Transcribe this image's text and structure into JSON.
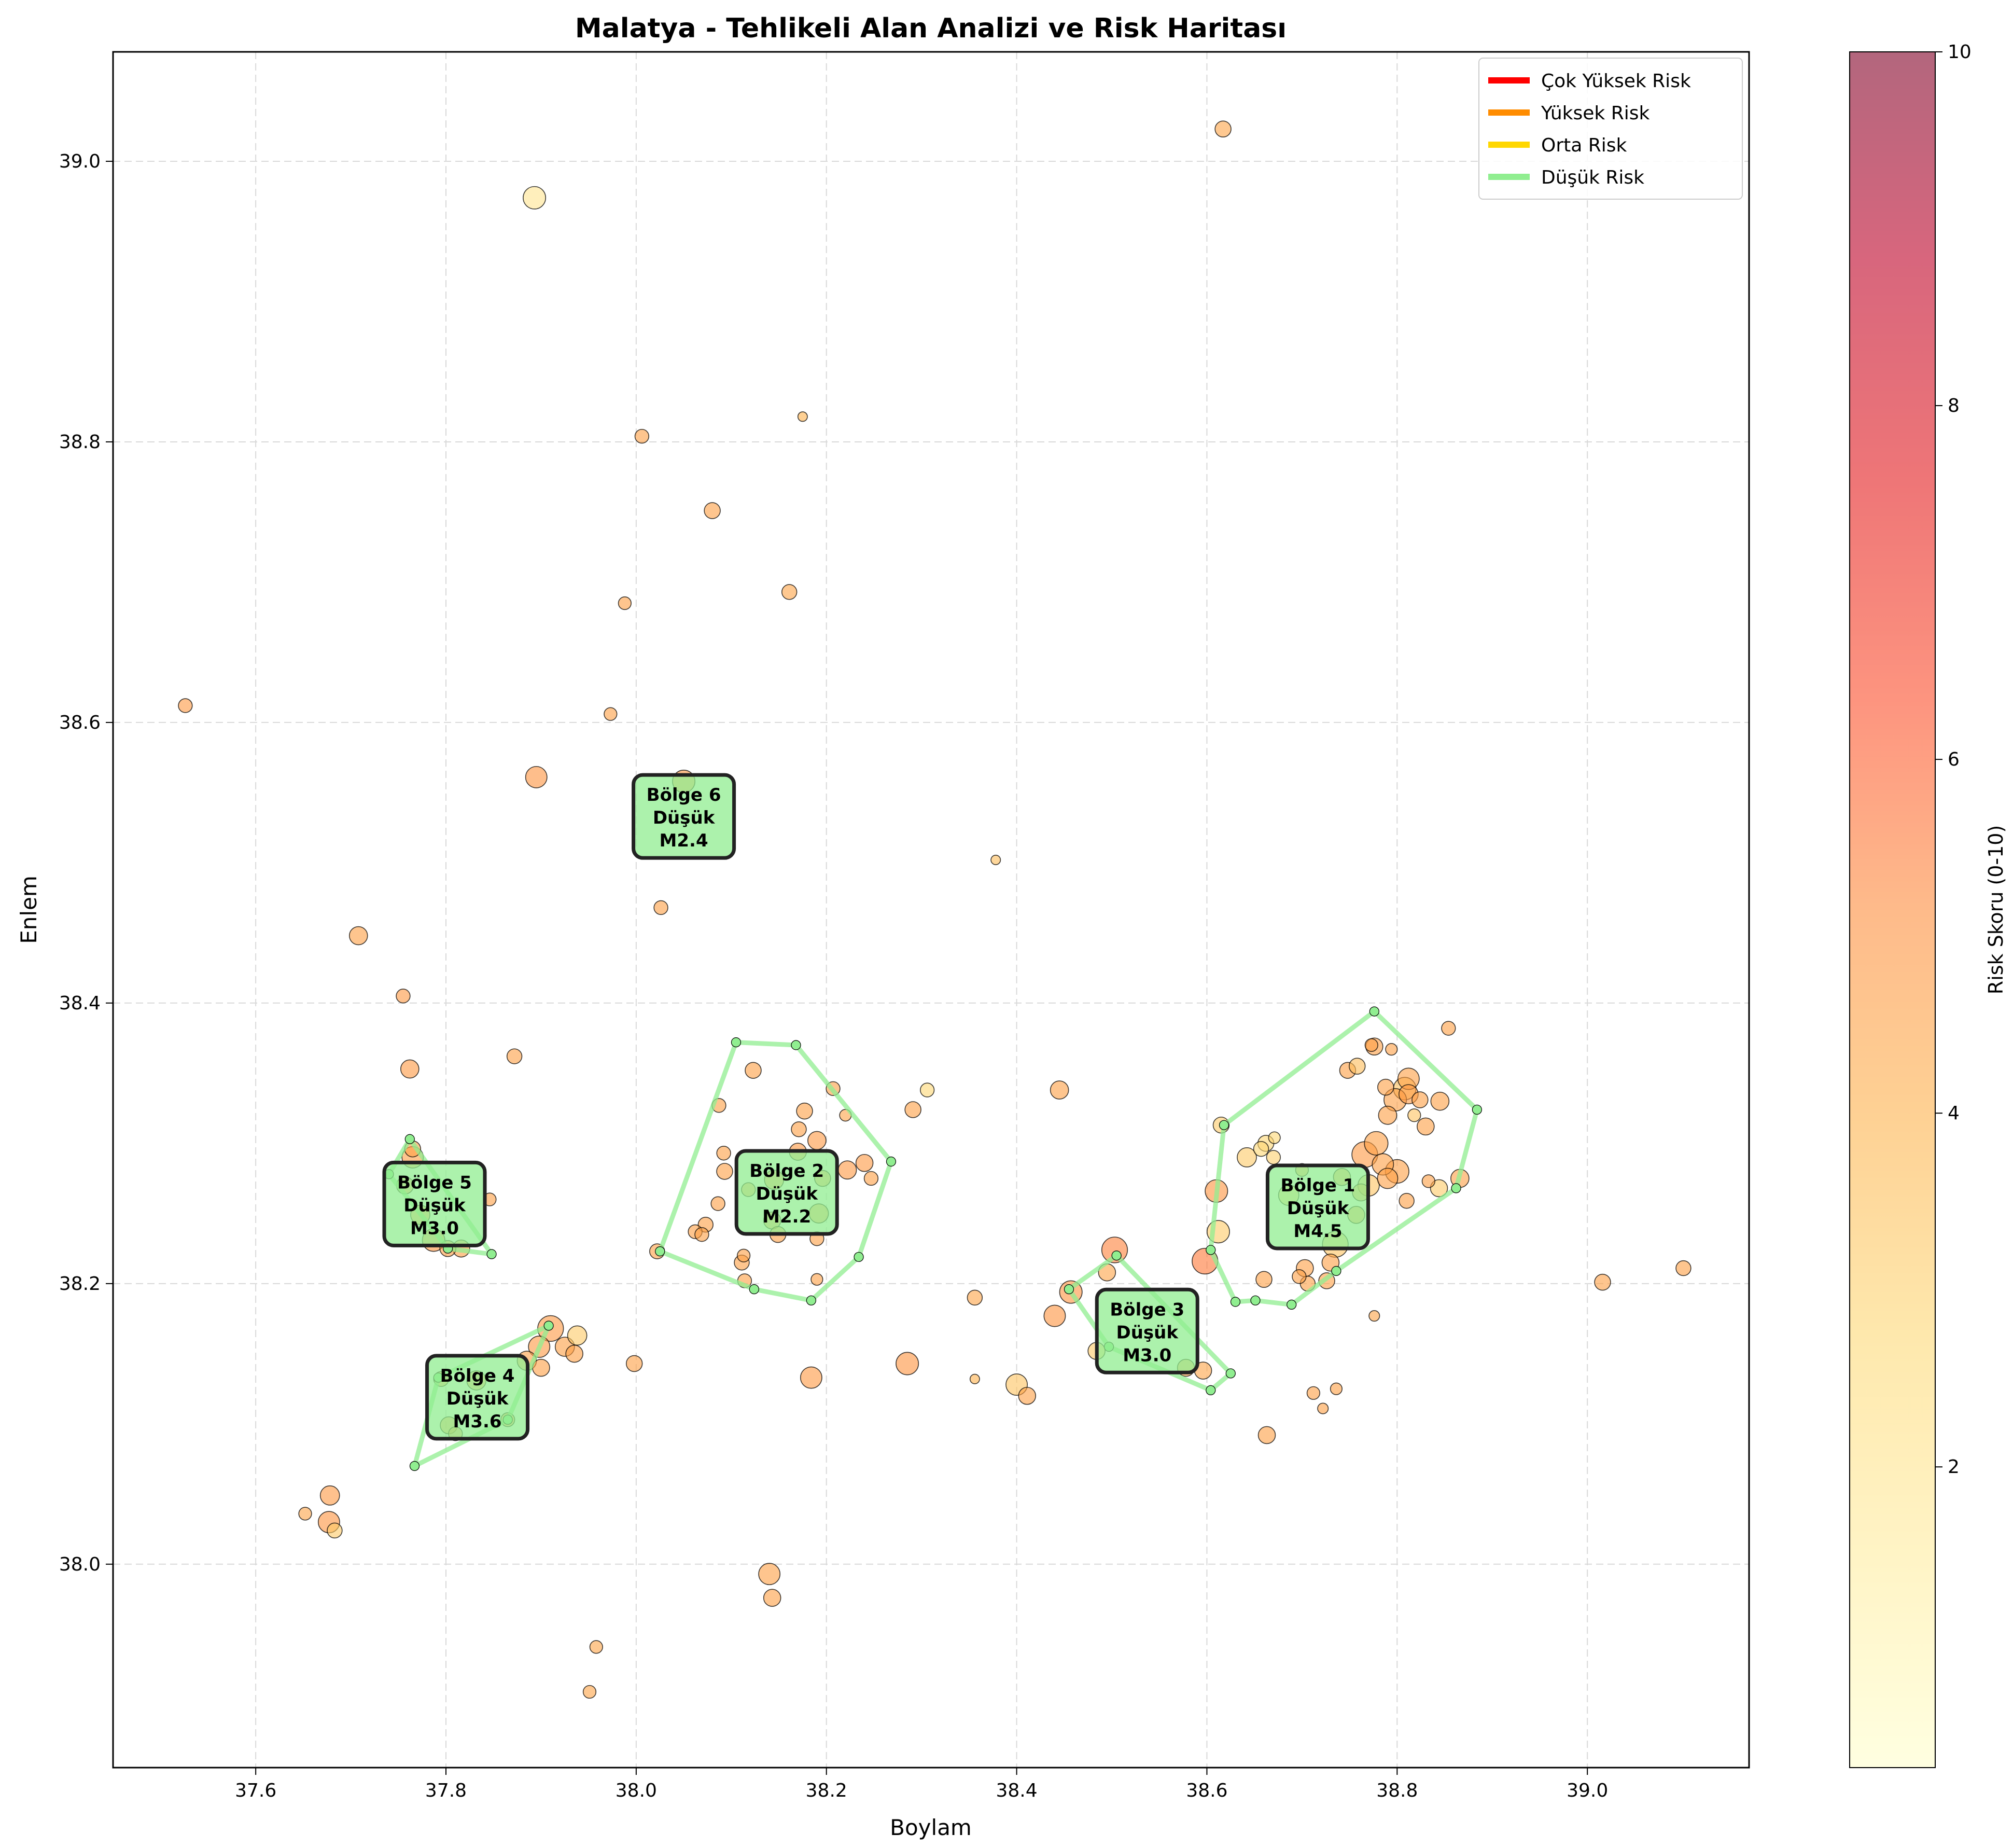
{
  "chart_data": {
    "type": "scatter",
    "title": "Malatya - Tehlikeli Alan Analizi ve Risk Haritası",
    "xlabel": "Boylam",
    "ylabel": "Enlem",
    "xlim": [
      37.45,
      39.17
    ],
    "ylim": [
      37.855,
      39.078
    ],
    "xticks": [
      "37.6",
      "37.8",
      "38.0",
      "38.2",
      "38.4",
      "38.6",
      "38.8",
      "39.0"
    ],
    "yticks": [
      "38.0",
      "38.2",
      "38.4",
      "38.6",
      "38.8",
      "39.0"
    ],
    "grid": true,
    "colorbar": {
      "label": "Risk Skoru (0-10)",
      "range": [
        0.3,
        10
      ],
      "ticks": [
        "2",
        "4",
        "6",
        "8",
        "10"
      ],
      "colormap": "YlOrRd"
    },
    "legend": {
      "placement": "top-right",
      "items": [
        {
          "label": "Çok Yüksek Risk",
          "color": "#ff0000"
        },
        {
          "label": "Yüksek Risk",
          "color": "#ff8c00"
        },
        {
          "label": "Orta Risk",
          "color": "#ffd700"
        },
        {
          "label": "Düşük Risk",
          "color": "#90ee90"
        }
      ]
    },
    "regions": [
      {
        "name": "Bölge 1",
        "risk": "Düşük",
        "mag": "M4.5",
        "hull": [
          [
            38.776,
            38.394
          ],
          [
            38.884,
            38.324
          ],
          [
            38.862,
            38.268
          ],
          [
            38.736,
            38.209
          ],
          [
            38.689,
            38.185
          ],
          [
            38.651,
            38.188
          ],
          [
            38.63,
            38.187
          ],
          [
            38.604,
            38.224
          ],
          [
            38.618,
            38.313
          ]
        ]
      },
      {
        "name": "Bölge 2",
        "risk": "Düşük",
        "mag": "M2.2",
        "hull": [
          [
            38.105,
            38.372
          ],
          [
            38.168,
            38.37
          ],
          [
            38.268,
            38.287
          ],
          [
            38.234,
            38.219
          ],
          [
            38.184,
            38.188
          ],
          [
            38.124,
            38.196
          ],
          [
            38.025,
            38.223
          ]
        ]
      },
      {
        "name": "Bölge 3",
        "risk": "Düşük",
        "mag": "M3.0",
        "hull": [
          [
            38.505,
            38.22
          ],
          [
            38.625,
            38.136
          ],
          [
            38.604,
            38.124
          ],
          [
            38.497,
            38.155
          ],
          [
            38.455,
            38.196
          ]
        ]
      },
      {
        "name": "Bölge 4",
        "risk": "Düşük",
        "mag": "M3.6",
        "hull": [
          [
            37.908,
            38.17
          ],
          [
            37.865,
            38.103
          ],
          [
            37.767,
            38.07
          ],
          [
            37.792,
            38.133
          ]
        ]
      },
      {
        "name": "Bölge 5",
        "risk": "Düşük",
        "mag": "M3.0",
        "hull": [
          [
            37.762,
            38.303
          ],
          [
            37.848,
            38.221
          ],
          [
            37.802,
            38.225
          ],
          [
            37.74,
            38.278
          ]
        ]
      },
      {
        "name": "Bölge 6",
        "risk": "Düşük",
        "mag": "M2.4",
        "hull": [],
        "label_at": [
          38.05,
          38.533
        ]
      }
    ],
    "points": [
      [
        38.617,
        39.023,
        2.2,
        4.4
      ],
      [
        37.893,
        38.974,
        3.4,
        2.0
      ],
      [
        38.175,
        38.818,
        1.0,
        4.0
      ],
      [
        38.006,
        38.804,
        1.8,
        4.6
      ],
      [
        38.08,
        38.751,
        2.2,
        4.6
      ],
      [
        37.988,
        38.685,
        1.6,
        4.6
      ],
      [
        38.161,
        38.693,
        2.0,
        4.4
      ],
      [
        37.526,
        38.612,
        1.8,
        4.8
      ],
      [
        37.973,
        38.606,
        1.6,
        4.6
      ],
      [
        37.895,
        38.561,
        3.2,
        5.0
      ],
      [
        38.05,
        38.558,
        3.4,
        5.0
      ],
      [
        38.378,
        38.502,
        1.0,
        3.6
      ],
      [
        38.026,
        38.468,
        1.8,
        4.6
      ],
      [
        37.708,
        38.448,
        2.6,
        4.6
      ],
      [
        37.755,
        38.405,
        1.8,
        4.8
      ],
      [
        37.762,
        38.353,
        2.6,
        4.8
      ],
      [
        37.872,
        38.362,
        2.0,
        4.6
      ],
      [
        38.123,
        38.352,
        2.2,
        4.6
      ],
      [
        38.445,
        38.338,
        2.6,
        4.6
      ],
      [
        38.291,
        38.324,
        2.2,
        4.6
      ],
      [
        38.306,
        38.338,
        1.8,
        2.8
      ],
      [
        38.207,
        38.339,
        1.8,
        4.6
      ],
      [
        38.087,
        38.327,
        1.8,
        4.6
      ],
      [
        38.177,
        38.323,
        2.2,
        4.6
      ],
      [
        38.22,
        38.32,
        1.4,
        4.4
      ],
      [
        38.171,
        38.31,
        2.0,
        4.6
      ],
      [
        38.19,
        38.302,
        2.6,
        4.8
      ],
      [
        38.092,
        38.293,
        1.8,
        4.6
      ],
      [
        38.24,
        38.286,
        2.4,
        4.8
      ],
      [
        38.222,
        38.281,
        2.6,
        4.8
      ],
      [
        38.247,
        38.275,
        1.8,
        4.6
      ],
      [
        38.093,
        38.28,
        2.2,
        4.6
      ],
      [
        38.118,
        38.267,
        1.8,
        4.6
      ],
      [
        38.086,
        38.257,
        1.8,
        4.6
      ],
      [
        38.143,
        38.245,
        2.4,
        4.6
      ],
      [
        38.192,
        38.25,
        2.8,
        4.6
      ],
      [
        38.073,
        38.242,
        2.0,
        4.6
      ],
      [
        38.062,
        38.237,
        1.8,
        4.6
      ],
      [
        38.069,
        38.235,
        1.8,
        4.6
      ],
      [
        38.149,
        38.235,
        2.2,
        4.6
      ],
      [
        38.19,
        38.232,
        1.8,
        4.6
      ],
      [
        38.113,
        38.22,
        1.6,
        4.6
      ],
      [
        38.111,
        38.215,
        2.0,
        4.6
      ],
      [
        38.114,
        38.202,
        1.8,
        4.6
      ],
      [
        38.19,
        38.203,
        1.4,
        4.6
      ],
      [
        38.145,
        38.274,
        2.8,
        4.8
      ],
      [
        38.17,
        38.294,
        2.4,
        4.8
      ],
      [
        38.196,
        38.275,
        2.2,
        4.6
      ],
      [
        38.184,
        38.133,
        3.2,
        4.8
      ],
      [
        38.285,
        38.143,
        3.4,
        5.0
      ],
      [
        38.356,
        38.19,
        2.0,
        4.4
      ],
      [
        38.356,
        38.132,
        1.0,
        4.0
      ],
      [
        38.4,
        38.128,
        3.2,
        3.4
      ],
      [
        38.411,
        38.12,
        2.4,
        4.6
      ],
      [
        38.44,
        38.177,
        3.2,
        5.0
      ],
      [
        38.457,
        38.194,
        3.4,
        5.0
      ],
      [
        38.495,
        38.208,
        2.4,
        4.4
      ],
      [
        38.503,
        38.224,
        4.0,
        5.4
      ],
      [
        38.484,
        38.152,
        2.4,
        3.2
      ],
      [
        38.578,
        38.14,
        2.4,
        4.4
      ],
      [
        38.596,
        38.138,
        2.4,
        4.4
      ],
      [
        38.598,
        38.216,
        4.0,
        5.6
      ],
      [
        38.61,
        38.266,
        3.4,
        5.0
      ],
      [
        38.612,
        38.237,
        3.4,
        3.2
      ],
      [
        38.66,
        38.203,
        2.2,
        4.6
      ],
      [
        38.663,
        38.092,
        2.4,
        4.6
      ],
      [
        38.642,
        38.29,
        2.8,
        3.2
      ],
      [
        38.657,
        38.296,
        2.0,
        2.8
      ],
      [
        38.662,
        38.3,
        2.2,
        2.8
      ],
      [
        38.671,
        38.304,
        1.4,
        2.8
      ],
      [
        38.67,
        38.29,
        1.8,
        3.0
      ],
      [
        38.686,
        38.263,
        3.0,
        3.0
      ],
      [
        38.703,
        38.211,
        2.4,
        4.6
      ],
      [
        38.697,
        38.205,
        1.8,
        4.6
      ],
      [
        38.706,
        38.2,
        2.0,
        4.6
      ],
      [
        38.726,
        38.202,
        2.2,
        4.6
      ],
      [
        38.735,
        38.228,
        4.0,
        3.4
      ],
      [
        38.73,
        38.215,
        2.4,
        4.6
      ],
      [
        38.712,
        38.122,
        1.6,
        4.6
      ],
      [
        38.722,
        38.111,
        1.2,
        4.6
      ],
      [
        38.736,
        38.125,
        1.4,
        4.6
      ],
      [
        38.776,
        38.177,
        1.2,
        4.4
      ],
      [
        38.757,
        38.249,
        2.4,
        4.6
      ],
      [
        38.748,
        38.352,
        2.2,
        4.6
      ],
      [
        38.758,
        38.355,
        2.2,
        3.6
      ],
      [
        38.773,
        38.37,
        1.6,
        4.6
      ],
      [
        38.776,
        38.369,
        2.4,
        4.6
      ],
      [
        38.788,
        38.34,
        2.2,
        4.6
      ],
      [
        38.794,
        38.367,
        1.4,
        4.6
      ],
      [
        38.808,
        38.339,
        3.4,
        3.4
      ],
      [
        38.812,
        38.346,
        3.2,
        4.6
      ],
      [
        38.798,
        38.331,
        3.4,
        4.6
      ],
      [
        38.812,
        38.335,
        2.8,
        4.8
      ],
      [
        38.824,
        38.331,
        2.2,
        4.6
      ],
      [
        38.845,
        38.33,
        2.6,
        4.6
      ],
      [
        38.854,
        38.382,
        1.8,
        4.6
      ],
      [
        38.79,
        38.32,
        2.6,
        4.6
      ],
      [
        38.818,
        38.32,
        1.6,
        3.4
      ],
      [
        38.778,
        38.3,
        3.6,
        4.6
      ],
      [
        38.766,
        38.292,
        4.0,
        4.8
      ],
      [
        38.785,
        38.285,
        3.2,
        4.6
      ],
      [
        38.79,
        38.275,
        3.0,
        4.6
      ],
      [
        38.8,
        38.28,
        3.6,
        4.6
      ],
      [
        38.77,
        38.27,
        3.2,
        3.4
      ],
      [
        38.83,
        38.312,
        2.4,
        4.6
      ],
      [
        38.833,
        38.273,
        1.6,
        4.6
      ],
      [
        38.844,
        38.268,
        2.4,
        3.2
      ],
      [
        38.866,
        38.275,
        2.6,
        4.6
      ],
      [
        38.81,
        38.259,
        2.0,
        4.6
      ],
      [
        38.762,
        38.265,
        2.4,
        4.6
      ],
      [
        38.742,
        38.276,
        2.4,
        4.6
      ],
      [
        38.7,
        38.281,
        1.6,
        4.6
      ],
      [
        38.615,
        38.313,
        2.2,
        3.2
      ],
      [
        39.016,
        38.201,
        2.2,
        4.6
      ],
      [
        39.101,
        38.211,
        2.0,
        4.6
      ],
      [
        38.14,
        37.993,
        3.2,
        4.6
      ],
      [
        38.143,
        37.976,
        2.4,
        4.6
      ],
      [
        37.958,
        37.941,
        1.6,
        4.4
      ],
      [
        37.951,
        37.909,
        1.6,
        4.4
      ],
      [
        37.678,
        38.049,
        2.8,
        4.8
      ],
      [
        37.677,
        38.03,
        3.2,
        5.0
      ],
      [
        37.683,
        38.024,
        2.0,
        3.2
      ],
      [
        37.652,
        38.036,
        1.6,
        4.4
      ],
      [
        37.803,
        38.099,
        2.4,
        4.6
      ],
      [
        37.81,
        38.093,
        1.8,
        4.6
      ],
      [
        37.865,
        38.103,
        1.8,
        4.6
      ],
      [
        37.795,
        38.132,
        2.0,
        4.6
      ],
      [
        37.832,
        38.131,
        2.8,
        4.6
      ],
      [
        37.91,
        38.168,
        4.0,
        4.8
      ],
      [
        37.925,
        38.155,
        2.8,
        4.6
      ],
      [
        37.938,
        38.163,
        2.8,
        3.2
      ],
      [
        37.935,
        38.15,
        2.4,
        4.6
      ],
      [
        37.898,
        38.155,
        3.2,
        4.8
      ],
      [
        37.885,
        38.145,
        2.8,
        4.6
      ],
      [
        37.9,
        38.14,
        2.4,
        4.6
      ],
      [
        37.816,
        38.225,
        2.4,
        4.6
      ],
      [
        37.802,
        38.225,
        2.2,
        4.6
      ],
      [
        37.787,
        38.231,
        3.4,
        5.0
      ],
      [
        37.773,
        38.249,
        2.8,
        4.6
      ],
      [
        37.765,
        38.29,
        3.2,
        4.6
      ],
      [
        37.765,
        38.296,
        2.2,
        4.6
      ],
      [
        37.757,
        38.27,
        2.4,
        4.6
      ],
      [
        37.846,
        38.26,
        1.6,
        4.6
      ],
      [
        37.998,
        38.143,
        2.2,
        4.6
      ],
      [
        38.022,
        38.223,
        2.0,
        4.6
      ]
    ]
  }
}
